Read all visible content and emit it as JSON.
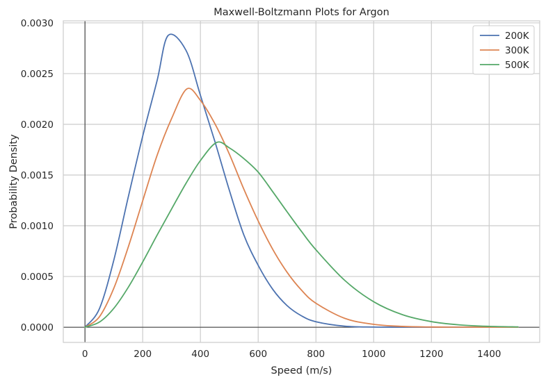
{
  "chart_data": {
    "type": "line",
    "title": "Maxwell-Boltzmann Plots for Argon",
    "xlabel": "Speed (m/s)",
    "ylabel": "Probability Density",
    "xlim": [
      -75,
      1575
    ],
    "ylim": [
      -0.00015,
      0.00302
    ],
    "xticks": [
      0,
      200,
      400,
      600,
      800,
      1000,
      1200,
      1400
    ],
    "yticks": [
      0.0,
      0.0005,
      0.001,
      0.0015,
      0.002,
      0.0025,
      0.003
    ],
    "xtick_labels": [
      "0",
      "200",
      "400",
      "600",
      "800",
      "1000",
      "1200",
      "1400"
    ],
    "ytick_labels": [
      "0.0000",
      "0.0005",
      "0.0010",
      "0.0015",
      "0.0020",
      "0.0025",
      "0.0030"
    ],
    "grid": true,
    "reference_lines": {
      "x": 0,
      "y": 0
    },
    "legend_position": "top-right",
    "series": [
      {
        "name": "200K",
        "color": "#4c72b0",
        "x": [
          0,
          50,
          100,
          150,
          200,
          250,
          288,
          350,
          400,
          450,
          500,
          550,
          600,
          650,
          700,
          750,
          800,
          900,
          1000,
          1100,
          1200,
          1300,
          1400,
          1500
        ],
        "y": [
          0.0,
          0.000181,
          0.000661,
          0.001283,
          0.001883,
          0.002432,
          0.002875,
          0.002729,
          0.002285,
          0.001831,
          0.001351,
          0.000912,
          0.00061,
          0.000375,
          0.000213,
          0.000112,
          5.4e-05,
          1e-05,
          1.4e-06,
          2e-07,
          0.0,
          0.0,
          0.0,
          0.0
        ]
      },
      {
        "name": "300K",
        "color": "#dd8452",
        "x": [
          0,
          50,
          100,
          150,
          200,
          250,
          300,
          353,
          400,
          450,
          500,
          550,
          600,
          650,
          700,
          750,
          800,
          900,
          1000,
          1100,
          1200,
          1300,
          1400,
          1500
        ],
        "y": [
          0.0,
          0.000102,
          0.000384,
          0.00079,
          0.001246,
          0.001695,
          0.002056,
          0.002349,
          0.002236,
          0.002006,
          0.001707,
          0.001363,
          0.001047,
          0.00077,
          0.000542,
          0.000365,
          0.000236,
          8.7e-05,
          2.8e-05,
          7.8e-06,
          1.9e-06,
          4e-07,
          1e-07,
          0.0
        ]
      },
      {
        "name": "500K",
        "color": "#55a868",
        "x": [
          0,
          50,
          100,
          150,
          200,
          250,
          300,
          350,
          400,
          456,
          500,
          550,
          600,
          650,
          700,
          750,
          800,
          900,
          1000,
          1100,
          1200,
          1300,
          1400,
          1500
        ],
        "y": [
          0.0,
          5e-05,
          0.000186,
          0.000393,
          0.000643,
          0.000908,
          0.001165,
          0.001418,
          0.001643,
          0.001821,
          0.001768,
          0.001663,
          0.001529,
          0.001337,
          0.001138,
          0.000944,
          0.000763,
          0.000461,
          0.000251,
          0.000123,
          5.5e-05,
          2.2e-05,
          8.1e-06,
          2.8e-06
        ]
      }
    ]
  }
}
